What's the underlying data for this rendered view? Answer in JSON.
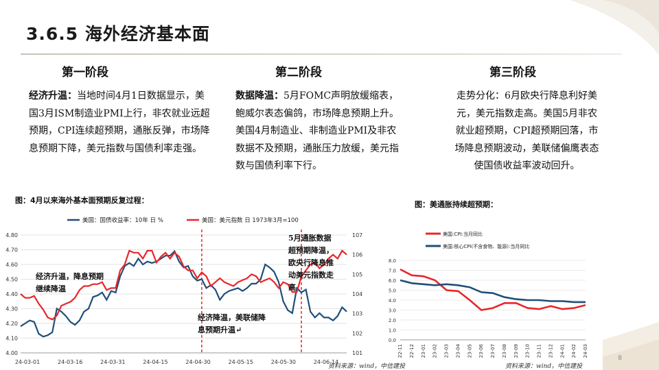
{
  "slide": {
    "title": "3.6.5 海外经济基本面",
    "page_number": "8"
  },
  "stages": [
    {
      "heading": "第一阶段",
      "lead": "经济升温：",
      "body": "当地时间4月1日数据显示，美国3月ISM制造业PMI上行，非农就业远超预期，CPI连续超预期，通胀反弹，市场降息预期下降，美元指数与国债利率走强。"
    },
    {
      "heading": "第二阶段",
      "lead": "数据降温：",
      "body": "5月FOMC声明放缓缩表，鲍威尔表态偏鸽，市场降息预期上升。美国4月制造业、非制造业PMI及非农数据不及预期，通胀压力放缓，美元指数与国债利率下行。"
    },
    {
      "heading": "第三阶段",
      "lead": "",
      "body": "走势分化：6月欧央行降息利好美元，美元指数走高。美国5月非农就业超预期，CPI超预期回落，市场降息预期波动，美联储偏鹰表态使国债收益率波动回升。"
    }
  ],
  "figure_left": {
    "caption": "图：4月以来海外基本面预期反复过程：",
    "source": "资料来源：wind，中信建投"
  },
  "figure_right": {
    "caption": "图：美通胀持续超预期：",
    "source": "资料来源：wind，中信建投"
  },
  "chart_data": [
    {
      "type": "line",
      "legend_position": "top",
      "grid": true,
      "x_tick_labels": [
        "24-03-01",
        "24-03-16",
        "24-03-31",
        "24-04-15",
        "24-04-30",
        "24-05-15",
        "24-05-30",
        "24-06-14"
      ],
      "y_left": {
        "range": [
          4.0,
          4.8
        ],
        "ticks": [
          "4.00",
          "4.10",
          "4.20",
          "4.30",
          "4.40",
          "4.50",
          "4.60",
          "4.70",
          "4.80"
        ]
      },
      "y_right": {
        "range": [
          101,
          107
        ],
        "ticks": [
          "101",
          "102",
          "103",
          "104",
          "105",
          "106",
          "107"
        ]
      },
      "colors": {
        "yield": "#1f4e79",
        "dxy": "#e8262a",
        "divider": "#e8262a"
      },
      "series": [
        {
          "name": "美国：国债收益率：10年  日  %",
          "axis": "left",
          "values": [
            4.18,
            4.2,
            4.22,
            4.21,
            4.13,
            4.11,
            4.12,
            4.14,
            4.3,
            4.28,
            4.25,
            4.21,
            4.19,
            4.22,
            4.28,
            4.3,
            4.38,
            4.39,
            4.41,
            4.36,
            4.42,
            4.41,
            4.52,
            4.59,
            4.61,
            4.59,
            4.64,
            4.6,
            4.62,
            4.61,
            4.62,
            4.64,
            4.66,
            4.66,
            4.69,
            4.62,
            4.58,
            4.59,
            4.52,
            4.49,
            4.5,
            4.44,
            4.46,
            4.43,
            4.36,
            4.4,
            4.42,
            4.43,
            4.44,
            4.42,
            4.44,
            4.47,
            4.47,
            4.5,
            4.6,
            4.58,
            4.55,
            4.48,
            4.35,
            4.29,
            4.27,
            4.44,
            4.41,
            4.43,
            4.28,
            4.24,
            4.27,
            4.24,
            4.24,
            4.22,
            4.25,
            4.31,
            4.28
          ]
        },
        {
          "name": "美国：美元指数  日  1973年3月=100",
          "axis": "right",
          "values": [
            104.0,
            103.8,
            103.8,
            103.9,
            103.5,
            103.2,
            102.8,
            102.7,
            102.9,
            103.4,
            103.5,
            103.6,
            103.8,
            104.2,
            104.4,
            104.4,
            104.5,
            104.5,
            104.6,
            104.2,
            104.3,
            104.3,
            105.2,
            105.5,
            106.2,
            106.1,
            106.1,
            105.8,
            106.2,
            106.2,
            105.6,
            105.9,
            106.1,
            105.8,
            106.1,
            105.9,
            105.4,
            105.2,
            105.2,
            104.8,
            105.1,
            104.9,
            104.4,
            104.6,
            104.8,
            104.6,
            104.5,
            104.4,
            104.6,
            104.7,
            104.8,
            105.0,
            104.9,
            104.6,
            104.7,
            104.8,
            104.6,
            104.3,
            104.6,
            104.5,
            104.1,
            104.1,
            104.9,
            105.2,
            105.5,
            105.6,
            105.3,
            105.5,
            105.8,
            106.0,
            105.8,
            106.2,
            106.0
          ]
        }
      ],
      "dividers": [
        {
          "label": "24-04-30",
          "index": 40
        },
        {
          "label": "24-06-04",
          "index": 62
        }
      ],
      "annotations": [
        "经济升温，降息预期继续降温",
        "经济降温，美联储降息预期升温↵",
        "5月通胀数据超预期降温，欧央行降息推动美元指数走高"
      ]
    },
    {
      "type": "line",
      "legend_position": "top-left",
      "grid": true,
      "categories": [
        "22-11",
        "22-12",
        "23-01",
        "23-02",
        "23-03",
        "23-04",
        "23-05",
        "23-06",
        "23-07",
        "23-08",
        "23-09",
        "23-10",
        "23-11",
        "23-12",
        "24-01",
        "24-02",
        "24-03"
      ],
      "y": {
        "range": [
          0,
          8.0
        ],
        "ticks": [
          "0.0",
          "1.0",
          "2.0",
          "3.0",
          "4.0",
          "5.0",
          "6.0",
          "7.0",
          "8.0"
        ]
      },
      "colors": {
        "cpi": "#e8262a",
        "core": "#1f4e79"
      },
      "series": [
        {
          "name": "美国:CPI:当月同比",
          "values": [
            7.1,
            6.5,
            6.4,
            6.0,
            5.0,
            4.9,
            4.0,
            3.0,
            3.2,
            3.7,
            3.7,
            3.2,
            3.1,
            3.4,
            3.1,
            3.2,
            3.5
          ]
        },
        {
          "name": "美国:核心CPI(不含食物、能源):当月同比",
          "values": [
            6.0,
            5.7,
            5.6,
            5.5,
            5.6,
            5.5,
            5.3,
            4.8,
            4.7,
            4.3,
            4.1,
            4.0,
            4.0,
            3.9,
            3.9,
            3.8,
            3.8
          ]
        }
      ]
    }
  ]
}
